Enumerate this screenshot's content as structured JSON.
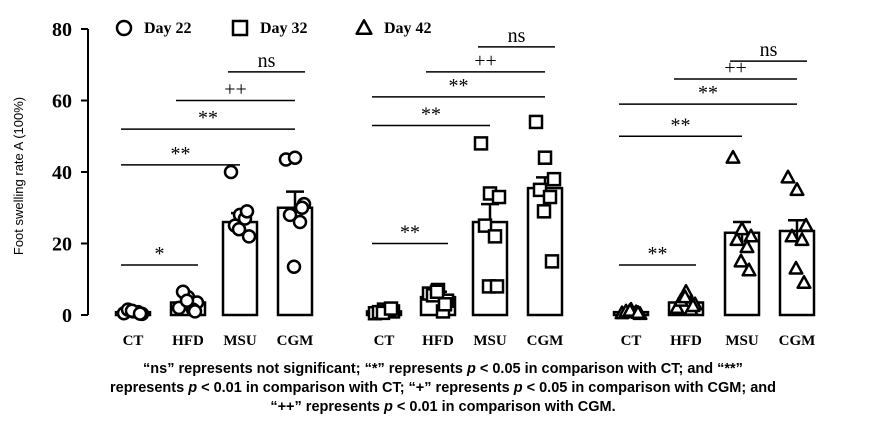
{
  "chart_data": {
    "type": "bar",
    "ylabel": "Foot swelling rate A (100%)",
    "ylim": [
      0,
      80
    ],
    "yticks": [
      0,
      20,
      40,
      60,
      80
    ],
    "categories": [
      "CT",
      "HFD",
      "MSU",
      "CGM"
    ],
    "legend": [
      {
        "name": "Day 22",
        "marker": "circle"
      },
      {
        "name": "Day 32",
        "marker": "square"
      },
      {
        "name": "Day 42",
        "marker": "triangle"
      }
    ],
    "groups": [
      {
        "name": "Day 22",
        "marker": "circle",
        "values": [
          0.8,
          3.5,
          26.0,
          30.0
        ],
        "errors": [
          0.4,
          1.5,
          2.5,
          4.5
        ],
        "points": [
          [
            0.5,
            1.0,
            0.3,
            1.5,
            0.8,
            1.2,
            0.4
          ],
          [
            2.0,
            5.0,
            3.5,
            6.5,
            1.5,
            4.0,
            1.0
          ],
          [
            40.0,
            28.0,
            22.0,
            25.0,
            27.0,
            24.0,
            29.0
          ],
          [
            43.5,
            44.0,
            31.0,
            28.0,
            26.0,
            13.5,
            30.0
          ]
        ],
        "sig": [
          {
            "from": 0,
            "to": 1,
            "label": "*",
            "y": 14
          },
          {
            "from": 0,
            "to": 2,
            "label": "**",
            "y": 42
          },
          {
            "from": 0,
            "to": 3,
            "label": "**",
            "y": 52
          },
          {
            "from": 1,
            "to": 3,
            "label": "++",
            "y": 60
          },
          {
            "from": 2,
            "to": 3,
            "label": "ns",
            "y": 68
          }
        ]
      },
      {
        "name": "Day 32",
        "marker": "square",
        "values": [
          1.0,
          5.0,
          26.0,
          35.5
        ],
        "errors": [
          0.4,
          1.5,
          5.0,
          3.0
        ],
        "points": [
          [
            0.5,
            1.5,
            1.0,
            0.8,
            1.2,
            0.6,
            1.8
          ],
          [
            6.0,
            7.0,
            4.0,
            5.5,
            1.0,
            6.5,
            3.0
          ],
          [
            48.0,
            34.0,
            33.0,
            25.0,
            22.0,
            8.0,
            8.0
          ],
          [
            54.0,
            44.0,
            38.0,
            35.0,
            33.0,
            29.0,
            15.0
          ]
        ],
        "sig": [
          {
            "from": 0,
            "to": 1,
            "label": "**",
            "y": 20
          },
          {
            "from": 0,
            "to": 2,
            "label": "**",
            "y": 53
          },
          {
            "from": 0,
            "to": 3,
            "label": "**",
            "y": 61
          },
          {
            "from": 1,
            "to": 3,
            "label": "++",
            "y": 68
          },
          {
            "from": 2,
            "to": 3,
            "label": "ns",
            "y": 75
          }
        ]
      },
      {
        "name": "Day 42",
        "marker": "triangle",
        "values": [
          0.8,
          3.5,
          23.0,
          23.5
        ],
        "errors": [
          0.4,
          1.0,
          3.0,
          3.0
        ],
        "points": [
          [
            0.5,
            1.5,
            0.3,
            1.0,
            0.8,
            1.2,
            0.6
          ],
          [
            2.0,
            6.5,
            3.0,
            4.0,
            1.5,
            5.0,
            2.5
          ],
          [
            44.0,
            24.0,
            22.0,
            21.0,
            19.0,
            15.0,
            12.5
          ],
          [
            38.5,
            35.0,
            25.0,
            22.0,
            21.0,
            13.0,
            9.0
          ]
        ],
        "sig": [
          {
            "from": 0,
            "to": 1,
            "label": "**",
            "y": 14
          },
          {
            "from": 0,
            "to": 2,
            "label": "**",
            "y": 50
          },
          {
            "from": 0,
            "to": 3,
            "label": "**",
            "y": 59
          },
          {
            "from": 1,
            "to": 3,
            "label": "++",
            "y": 66
          },
          {
            "from": 2,
            "to": 3,
            "label": "ns",
            "y": 71
          }
        ]
      }
    ]
  },
  "caption": {
    "line1_pre": "“ns” represents not significant; “*” represents ",
    "line1_p": "p",
    "line1_post": " < 0.05 in comparison with CT; and “**”",
    "line2_pre": "represents ",
    "line2_p": "p",
    "line2_mid": " < 0.01 in comparison with CT; “+” represents ",
    "line2_p2": "p",
    "line2_post": " < 0.05 in comparison with CGM; and",
    "line3_pre": "“++” represents ",
    "line3_p": "p",
    "line3_post": " < 0.01 in comparison with CGM."
  }
}
